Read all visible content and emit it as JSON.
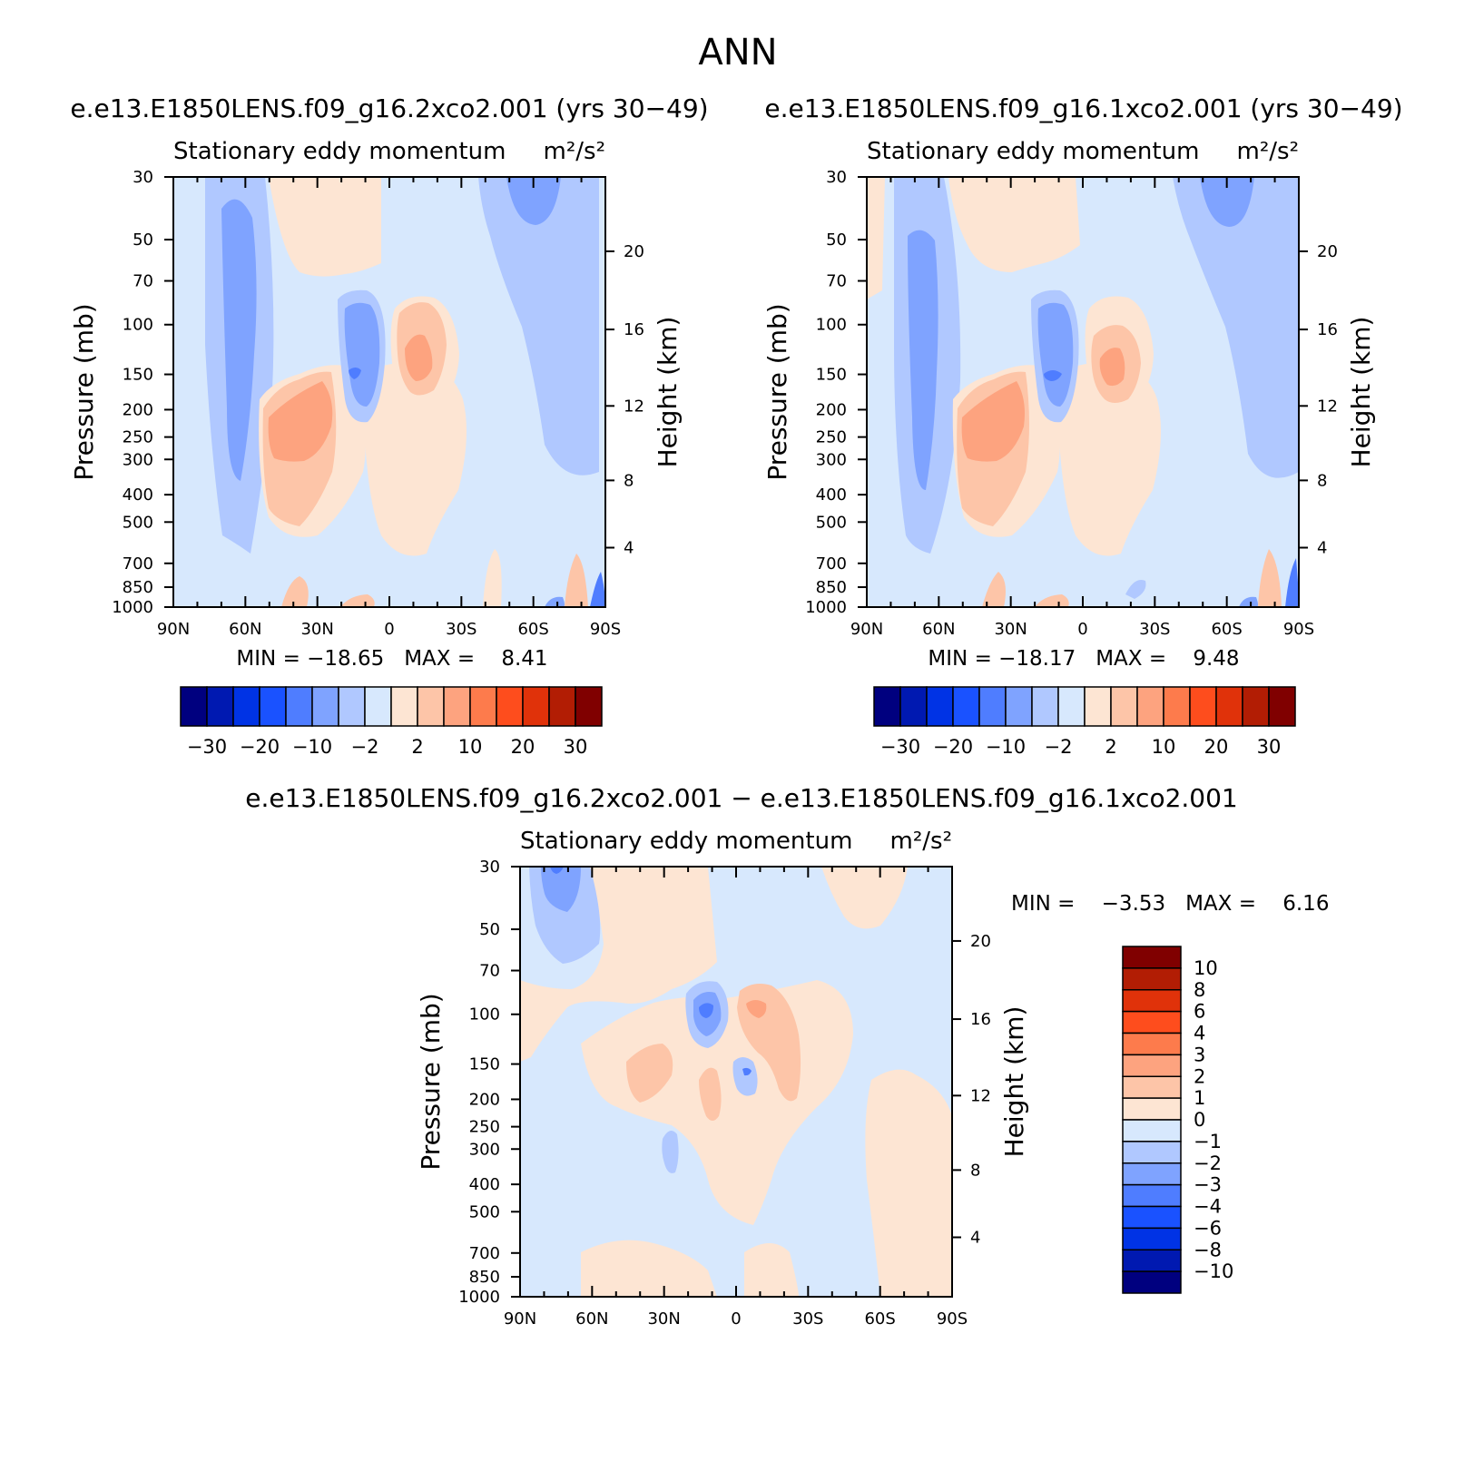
{
  "figure": {
    "title": "ANN"
  },
  "panels": [
    {
      "id": "top-left",
      "case_title": "e.e13.E1850LENS.f09_g16.2xco2.001 (yrs 30−49)",
      "variable_title": "Stationary eddy momentum",
      "units_label": "m²/s²",
      "ylabel_left": "Pressure (mb)",
      "ylabel_right": "Height (km)",
      "min_max_text": "MIN = −18.65   MAX =    8.41"
    },
    {
      "id": "top-right",
      "case_title": "e.e13.E1850LENS.f09_g16.1xco2.001 (yrs 30−49)",
      "variable_title": "Stationary eddy momentum",
      "units_label": "m²/s²",
      "ylabel_left": "Pressure (mb)",
      "ylabel_right": "Height (km)",
      "min_max_text": "MIN = −18.17   MAX =    9.48"
    },
    {
      "id": "bottom",
      "case_title": "e.e13.E1850LENS.f09_g16.2xco2.001 − e.e13.E1850LENS.f09_g16.1xco2.001",
      "variable_title": "Stationary eddy momentum",
      "units_label": "m²/s²",
      "ylabel_left": "Pressure (mb)",
      "ylabel_right": "Height (km)",
      "min_max_text": "MIN =    −3.53   MAX =    6.16"
    }
  ],
  "axes": {
    "x_ticks": [
      "90N",
      "60N",
      "30N",
      "0",
      "30S",
      "60S",
      "90S"
    ],
    "pressure_ticks": [
      "30",
      "50",
      "70",
      "100",
      "150",
      "200",
      "250",
      "300",
      "400",
      "500",
      "700",
      "850",
      "1000"
    ],
    "height_ticks": [
      "20",
      "16",
      "12",
      "8",
      "4"
    ]
  },
  "colorbars": {
    "main": {
      "colors": [
        "#00007f",
        "#0019b1",
        "#0033e5",
        "#1a52ff",
        "#4f7dff",
        "#7fa3ff",
        "#b0c8ff",
        "#d7e8fd",
        "#fde5d3",
        "#fdc5a8",
        "#fda37f",
        "#fd7b4c",
        "#fe4d1d",
        "#e0320a",
        "#b21d04",
        "#800000"
      ],
      "labels": [
        "−30",
        "−20",
        "−10",
        "−2",
        "2",
        "10",
        "20",
        "30"
      ]
    },
    "diff": {
      "colors_top_to_bottom": [
        "#800000",
        "#b21d04",
        "#e0320a",
        "#fe4d1d",
        "#fd7b4c",
        "#fda37f",
        "#fdc5a8",
        "#fde5d3",
        "#d7e8fd",
        "#b0c8ff",
        "#7fa3ff",
        "#4f7dff",
        "#1a52ff",
        "#0033e5",
        "#0019b1",
        "#00007f"
      ],
      "labels": [
        "10",
        "8",
        "6",
        "4",
        "3",
        "2",
        "1",
        "0",
        "−1",
        "−2",
        "−3",
        "−4",
        "−6",
        "−8",
        "−10"
      ]
    }
  },
  "chart_data": [
    {
      "type": "heatmap",
      "title": "e.e13.E1850LENS.f09_g16.2xco2.001 (yrs 30−49)",
      "subtitle": "Stationary eddy momentum",
      "xlabel": "",
      "ylabel": "Pressure (mb)",
      "ylabel_right": "Height (km)",
      "x_range": [
        "90N",
        "90S"
      ],
      "y_range_mb": [
        1000,
        30
      ],
      "y_scale": "log",
      "min": -18.65,
      "max": 8.41,
      "levels": [
        -30,
        -25,
        -20,
        -15,
        -10,
        -6,
        -2,
        0,
        2,
        6,
        10,
        15,
        20,
        25,
        30
      ],
      "features": [
        {
          "lat": -70,
          "p_mb": 150,
          "value": -10,
          "note": "negative column 60N-75N, 30-700 mb"
        },
        {
          "lat": -15,
          "p_mb": 150,
          "value": -18.65,
          "note": "minimum near 15N"
        },
        {
          "lat": 12,
          "p_mb": 150,
          "value": 8.41,
          "note": "maximum near 10S"
        },
        {
          "lat": -32,
          "p_mb": 250,
          "value": 6,
          "note": "positive upper troposphere 20N-45N"
        },
        {
          "lat": 65,
          "p_mb": 30,
          "value": -6,
          "note": "negative stratosphere 55S-75S"
        }
      ]
    },
    {
      "type": "heatmap",
      "title": "e.e13.E1850LENS.f09_g16.1xco2.001 (yrs 30−49)",
      "subtitle": "Stationary eddy momentum",
      "xlabel": "",
      "ylabel": "Pressure (mb)",
      "ylabel_right": "Height (km)",
      "x_range": [
        "90N",
        "90S"
      ],
      "y_range_mb": [
        1000,
        30
      ],
      "y_scale": "log",
      "min": -18.17,
      "max": 9.48,
      "levels": [
        -30,
        -25,
        -20,
        -15,
        -10,
        -6,
        -2,
        0,
        2,
        6,
        10,
        15,
        20,
        25,
        30
      ],
      "features": [
        {
          "lat": -63,
          "p_mb": 150,
          "value": -10,
          "note": "negative column near 60N"
        },
        {
          "lat": -15,
          "p_mb": 150,
          "value": -18.17,
          "note": "minimum near 15N"
        },
        {
          "lat": 12,
          "p_mb": 150,
          "value": 9.48,
          "note": "maximum near 10S"
        },
        {
          "lat": -32,
          "p_mb": 250,
          "value": 6,
          "note": "positive upper troposphere 20N-45N"
        },
        {
          "lat": 65,
          "p_mb": 30,
          "value": -6,
          "note": "negative stratosphere near 60S"
        }
      ]
    },
    {
      "type": "heatmap",
      "title": "e.e13.E1850LENS.f09_g16.2xco2.001 − e.e13.E1850LENS.f09_g16.1xco2.001",
      "subtitle": "Stationary eddy momentum",
      "xlabel": "",
      "ylabel": "Pressure (mb)",
      "ylabel_right": "Height (km)",
      "x_range": [
        "90N",
        "90S"
      ],
      "y_range_mb": [
        1000,
        30
      ],
      "y_scale": "log",
      "min": -3.53,
      "max": 6.16,
      "levels": [
        -10,
        -8,
        -6,
        -4,
        -3,
        -2,
        -1,
        0,
        1,
        2,
        3,
        4,
        6,
        8,
        10
      ],
      "features": [
        {
          "lat": -73,
          "p_mb": 35,
          "value": -3,
          "note": "negative stratosphere near 75N"
        },
        {
          "lat": -14,
          "p_mb": 100,
          "value": -3.53,
          "note": "minimum near 15N, 100 mb"
        },
        {
          "lat": 8,
          "p_mb": 100,
          "value": 3,
          "note": "positive near 10S, 100 mb"
        },
        {
          "lat": -42,
          "p_mb": 160,
          "value": 2,
          "note": "positive near 40N"
        },
        {
          "lat": -11,
          "p_mb": 200,
          "value": 2,
          "note": "positive near 10N, 200 mb"
        },
        {
          "lat": 1,
          "p_mb": 150,
          "value": -3,
          "note": "negative near equator, 150 mb"
        },
        {
          "lat": -27,
          "p_mb": 300,
          "value": -2,
          "note": "negative near 25N, 300 mb"
        }
      ]
    }
  ]
}
